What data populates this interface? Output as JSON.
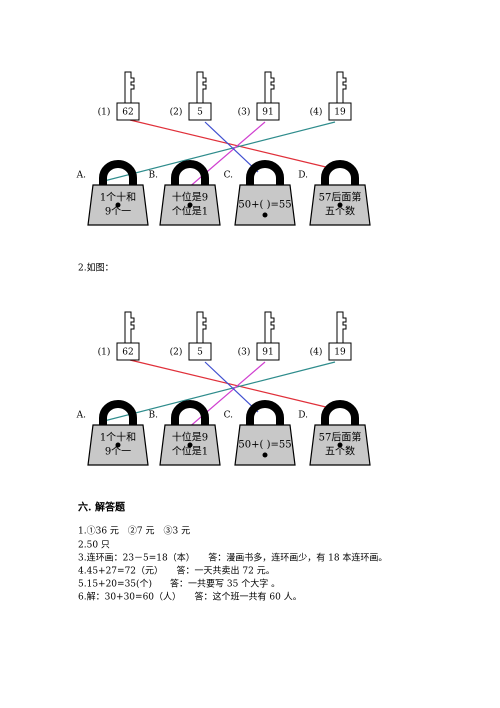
{
  "diagrams": [
    {
      "keys": [
        {
          "number": "(1)",
          "label": "62"
        },
        {
          "number": "(2)",
          "label": "5"
        },
        {
          "number": "(3)",
          "label": "91"
        },
        {
          "number": "(4)",
          "label": "19"
        }
      ],
      "locks": [
        {
          "letter": "A.",
          "lines": [
            "1个十和",
            "9个一"
          ]
        },
        {
          "letter": "B.",
          "lines": [
            "十位是9",
            "个位是1"
          ]
        },
        {
          "letter": "C.",
          "lines": [
            "50+(  )=55"
          ]
        },
        {
          "letter": "D.",
          "lines": [
            "57后面第",
            "五个数"
          ]
        }
      ]
    },
    {
      "keys": [
        {
          "number": "(1)",
          "label": "62"
        },
        {
          "number": "(2)",
          "label": "5"
        },
        {
          "number": "(3)",
          "label": "91"
        },
        {
          "number": "(4)",
          "label": "19"
        }
      ],
      "locks": [
        {
          "letter": "A.",
          "lines": [
            "1个十和",
            "9个一"
          ]
        },
        {
          "letter": "B.",
          "lines": [
            "十位是9",
            "个位是1"
          ]
        },
        {
          "letter": "C.",
          "lines": [
            "50+(  )=55"
          ]
        },
        {
          "letter": "D.",
          "lines": [
            "57后面第",
            "五个数"
          ]
        }
      ]
    }
  ],
  "caption": "2.如图：",
  "section_title": "六. 解答题",
  "answers": [
    "1.①36 元　②7 元　③3 元",
    "2.50 只",
    "3.连环画：23－5=18（本）　　答：漫画书多，连环画少，有 18 本连环画。",
    "4.45+27=72（元）　　答：一天共卖出 72 元。",
    "5.15+20=35(个)　　答：一共要写 35 个大字 。",
    "6.解：30+30=60（人）　　答：这个班一共有 60 人。"
  ]
}
